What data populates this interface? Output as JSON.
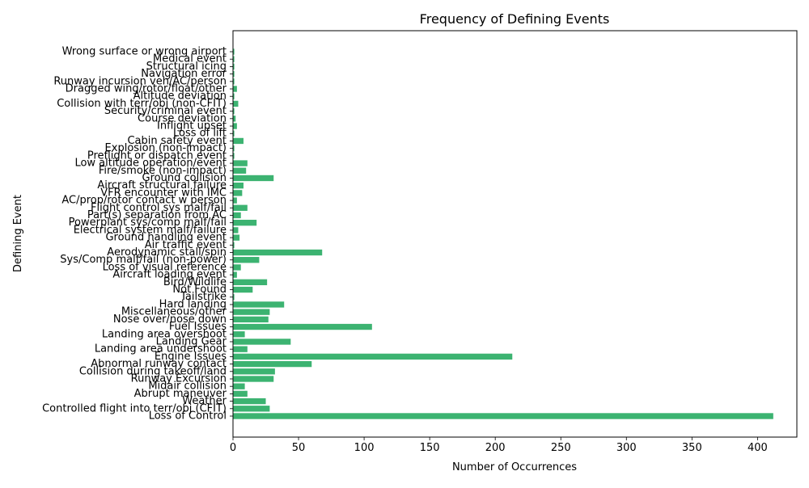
{
  "chart_data": {
    "type": "bar",
    "orientation": "horizontal",
    "title": "Frequency of Defining Events",
    "xlabel": "Number of Occurrences",
    "ylabel": "Defining Event",
    "xlim": [
      0,
      430
    ],
    "xticks": [
      0,
      50,
      100,
      150,
      200,
      250,
      300,
      350,
      400
    ],
    "grid": false,
    "bar_color": "#3cb371",
    "categories": [
      "Loss of Control",
      "Controlled flight into terr/obj (CFIT)",
      "Weather",
      "Abrupt maneuver",
      "Midair collision",
      "Runway Excursion",
      "Collision during takeoff/land",
      "Abnormal runway contact",
      "Engine Issues",
      "Landing area undershoot",
      "Landing Gear",
      "Landing area overshoot",
      "Fuel Issues",
      "Nose over/nose down",
      "Miscellaneous/other",
      "Hard landing",
      "Tailstrike",
      "Not Found",
      "Bird/Wildlife",
      "Aircraft loading event",
      "Loss of visual reference",
      "Sys/Comp malf/fail (non-power)",
      "Aerodynamic stall/spin",
      "Air traffic event",
      "Ground handling event",
      "Electrical system malf/failure",
      "Powerplant sys/comp malf/fail",
      "Part(s) separation from AC",
      "Flight control sys malf/fail",
      "AC/prop/rotor contact w person",
      "VFR encounter with IMC",
      "Aircraft structural failure",
      "Ground collision",
      "Fire/smoke (non-impact)",
      "Low altitude operation/event",
      "Preflight or dispatch event",
      "Explosion (non-impact)",
      "Cabin safety event",
      "Loss of lift",
      "Inflight upset",
      "Course deviation",
      "Security/criminal event",
      "Collision with terr/obj (non-CFIT)",
      "Altitude deviation",
      "Dragged wing/rotor/float/other",
      "Runway incursion veh/AC/person",
      "Navigation error",
      "Structural icing",
      "Medical event",
      "Wrong surface or wrong airport"
    ],
    "values": [
      412,
      28,
      25,
      11,
      9,
      31,
      32,
      60,
      213,
      11,
      44,
      9,
      106,
      27,
      28,
      39,
      1,
      15,
      26,
      3,
      6,
      20,
      68,
      1,
      5,
      4,
      18,
      6,
      11,
      3,
      7,
      8,
      31,
      10,
      11,
      1,
      1,
      8,
      1,
      3,
      2,
      1,
      4,
      1,
      3,
      1,
      1,
      1,
      1,
      1
    ]
  }
}
